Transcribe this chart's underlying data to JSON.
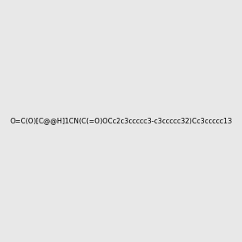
{
  "smiles": "O=C(O)[C@@H]1CN(C(=O)OCc2c3ccccc3-c3ccccc32)Cc3ccccc13",
  "image_size": 300,
  "background_color": "#e8e8e8",
  "title": "",
  "dpi": 100
}
